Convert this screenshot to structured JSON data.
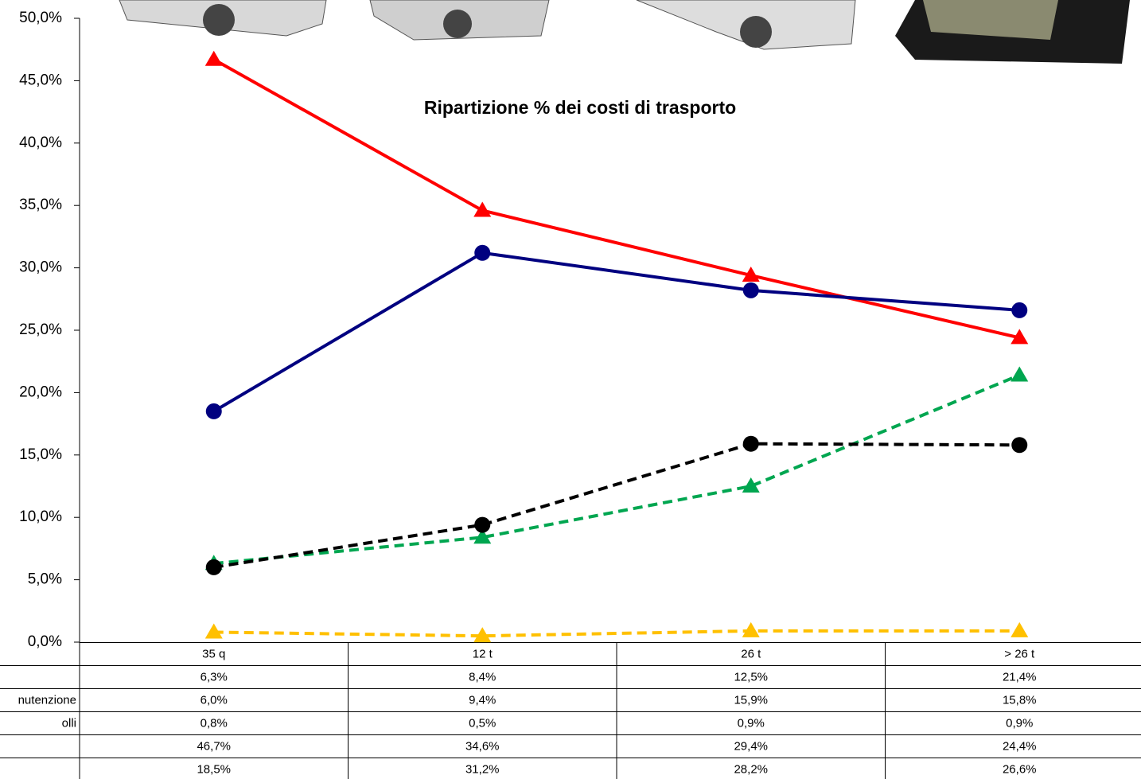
{
  "chart_data": {
    "type": "line",
    "title": "Ripartizione % dei costi di trasporto",
    "categories": [
      "35 q",
      "12 t",
      "26 t",
      "> 26 t"
    ],
    "ylim": [
      0,
      50
    ],
    "yticks": [
      {
        "value": 0,
        "label": "0,0%"
      },
      {
        "value": 5,
        "label": "5,0%"
      },
      {
        "value": 10,
        "label": "10,0%"
      },
      {
        "value": 15,
        "label": "15,0%"
      },
      {
        "value": 20,
        "label": "20,0%"
      },
      {
        "value": 25,
        "label": "25,0%"
      },
      {
        "value": 30,
        "label": "30,0%"
      },
      {
        "value": 35,
        "label": "35,0%"
      },
      {
        "value": 40,
        "label": "40,0%"
      },
      {
        "value": 45,
        "label": "45,0%"
      },
      {
        "value": 50,
        "label": "50,0%"
      }
    ],
    "series": [
      {
        "name": null,
        "color": "#00a650",
        "line_style": "dashed",
        "marker": "triangle",
        "values": [
          6.3,
          8.4,
          12.5,
          21.4
        ],
        "value_labels": [
          "6,3%",
          "8,4%",
          "12,5%",
          "21,4%"
        ]
      },
      {
        "name": "nutenzione",
        "color": "#000000",
        "line_style": "dashed",
        "marker": "circle",
        "values": [
          6.0,
          9.4,
          15.9,
          15.8
        ],
        "value_labels": [
          "6,0%",
          "9,4%",
          "15,9%",
          "15,8%"
        ]
      },
      {
        "name": "olli",
        "color": "#ffc000",
        "line_style": "dashed",
        "marker": "triangle",
        "values": [
          0.8,
          0.5,
          0.9,
          0.9
        ],
        "value_labels": [
          "0,8%",
          "0,5%",
          "0,9%",
          "0,9%"
        ]
      },
      {
        "name": null,
        "color": "#ff0000",
        "line_style": "solid",
        "marker": "triangle",
        "values": [
          46.7,
          34.6,
          29.4,
          24.4
        ],
        "value_labels": [
          "46,7%",
          "34,6%",
          "29,4%",
          "24,4%"
        ]
      },
      {
        "name": null,
        "color": "#000080",
        "line_style": "solid",
        "marker": "circle",
        "values": [
          18.5,
          31.2,
          28.2,
          26.6
        ],
        "value_labels": [
          "18,5%",
          "31,2%",
          "28,2%",
          "26,6%"
        ]
      }
    ]
  }
}
